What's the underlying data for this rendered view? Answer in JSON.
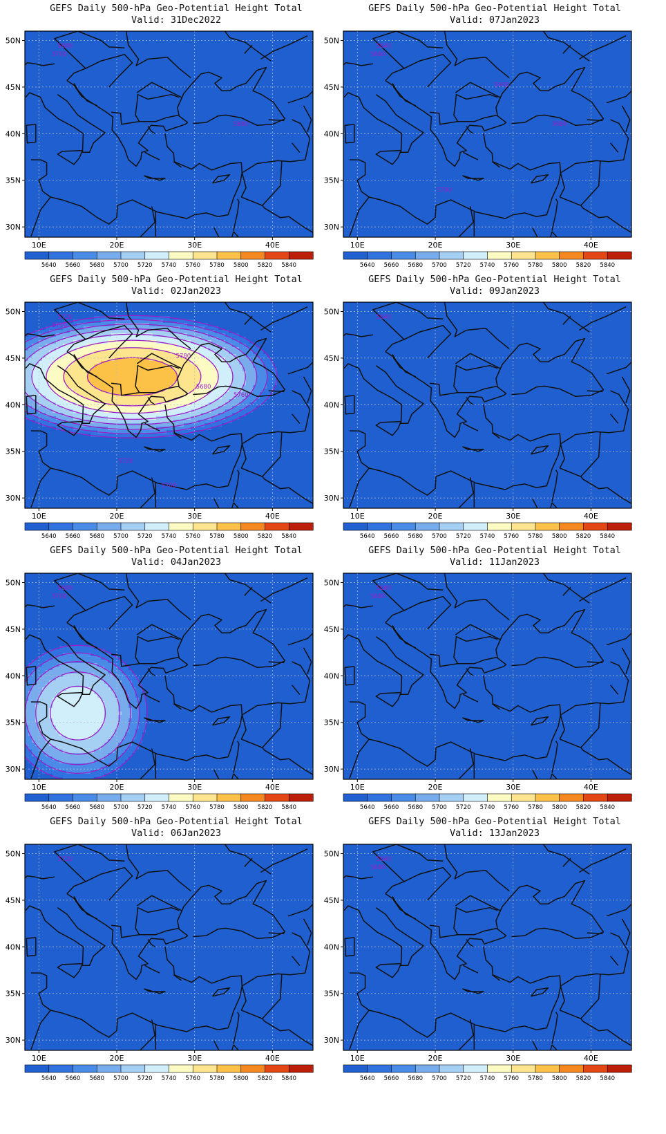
{
  "panels": [
    {
      "title": "GEFS Daily 500-hPa Geo-Potential Height Total",
      "valid": "Valid: 31Dec2022",
      "field": {
        "base": 5745,
        "ax": 4.5,
        "ay": 0.8,
        "k": 55,
        "cx": 3,
        "cy": 38,
        "ampX": 0,
        "ampY": 0,
        "axb": 0
      },
      "contour_labels": [
        "5680",
        "5700",
        "5680"
      ]
    },
    {
      "title": "GEFS Daily 500-hPa Geo-Potential Height Total",
      "valid": "Valid: 07Jan2023",
      "field": {
        "base": 5630,
        "ax": 0.4,
        "ay": 11,
        "k": 0,
        "cx": 27,
        "cy": 40,
        "ampX": 0,
        "ampY": 0,
        "axb": 0
      },
      "contour_labels": [
        "5640",
        "5660",
        "5680",
        "5660",
        "5700"
      ]
    },
    {
      "title": "GEFS Daily 500-hPa Geo-Potential Height Total",
      "valid": "Valid: 02Jan2023",
      "field": {
        "base": 5795,
        "ax": 0.45,
        "ay": 3.6,
        "k": 0,
        "cx": 22,
        "cy": 43,
        "ampX": 0.15,
        "ampY": 0,
        "axb": 0
      },
      "contour_labels": [
        "5720",
        "5740",
        "5760",
        "5780",
        "5720",
        "5700",
        "5680"
      ]
    },
    {
      "title": "GEFS Daily 500-hPa Geo-Potential Height Total",
      "valid": "Valid: 09Jan2023",
      "field": {
        "base": 5610,
        "ax": 0.5,
        "ay": 9,
        "k": 0,
        "cx": 28,
        "cy": 41,
        "ampX": 0,
        "ampY": 0,
        "axb": 0
      },
      "contour_labels": [
        "5640"
      ]
    },
    {
      "title": "GEFS Daily 500-hPa Geo-Potential Height Total",
      "valid": "Valid: 04Jan2023",
      "field": {
        "base": 5735,
        "ax": 1.2,
        "ay": 1.8,
        "k": 0,
        "cx": 15,
        "cy": 36,
        "ampX": 0,
        "ampY": 0,
        "axb": 0
      },
      "contour_labels": [
        "5680",
        "5700"
      ]
    },
    {
      "title": "GEFS Daily 500-hPa Geo-Potential Height Total",
      "valid": "Valid: 11Jan2023",
      "field": {
        "base": 5605,
        "ax": 0.5,
        "ay": 10,
        "k": 0,
        "cx": 28,
        "cy": 42,
        "ampX": 0,
        "ampY": 0,
        "axb": 0
      },
      "contour_labels": [
        "5660",
        "5680"
      ]
    },
    {
      "title": "GEFS Daily 500-hPa Geo-Potential Height Total",
      "valid": "Valid: 06Jan2023",
      "field": {
        "base": 5620,
        "ax": 0.3,
        "ay": 10,
        "k": 0,
        "cx": 25,
        "cy": 42,
        "ampX": 0,
        "ampY": 0,
        "axb": 0
      },
      "contour_labels": [
        "5720"
      ]
    },
    {
      "title": "GEFS Daily 500-hPa Geo-Potential Height Total",
      "valid": "Valid: 13Jan2023",
      "field": {
        "base": 5605,
        "ax": 0.45,
        "ay": 10,
        "k": 0,
        "cx": 28,
        "cy": 42,
        "ampX": 0,
        "ampY": 0,
        "axb": 0
      },
      "contour_labels": [
        "5640",
        "5680"
      ]
    }
  ],
  "axes": {
    "lat_labels": [
      "50N",
      "45N",
      "40N",
      "35N",
      "30N"
    ],
    "lat_values": [
      50,
      45,
      40,
      35,
      30
    ],
    "lon_labels": [
      "10E",
      "20E",
      "30E",
      "40E"
    ],
    "lon_values": [
      10,
      20,
      30,
      40
    ],
    "lon_range": [
      8.2,
      45.2
    ],
    "lat_range": [
      28.9,
      51.0
    ]
  },
  "colorbar": {
    "labels": [
      "5640",
      "5660",
      "5680",
      "5700",
      "5720",
      "5740",
      "5760",
      "5780",
      "5800",
      "5820",
      "5840"
    ],
    "levels": [
      5640,
      5660,
      5680,
      5700,
      5720,
      5740,
      5760,
      5780,
      5800,
      5820,
      5840
    ],
    "colors": [
      "#1f5fcf",
      "#3073e0",
      "#4a8be8",
      "#79aced",
      "#a6cff4",
      "#d1eefb",
      "#fdfbc4",
      "#fde58e",
      "#fcc147",
      "#f5891f",
      "#e54712",
      "#bd1e07"
    ]
  },
  "style": {
    "contour_color": "#9b1fc8",
    "coast_color": "#111111",
    "grid_color": "#b9bfc9"
  }
}
